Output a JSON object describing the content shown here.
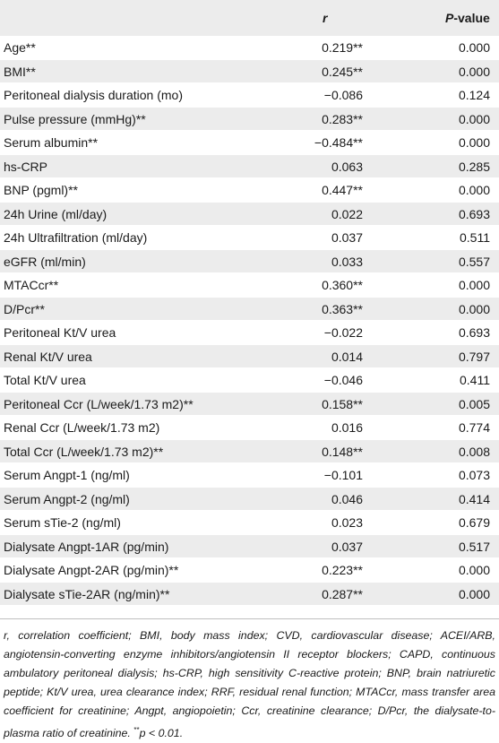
{
  "header": {
    "col_r": "r",
    "col_p_prefix": "P",
    "col_p_suffix": "-value"
  },
  "rows": [
    {
      "variable": "Age**",
      "r": "0.219**",
      "p": "0.000"
    },
    {
      "variable": "BMI**",
      "r": "0.245**",
      "p": "0.000"
    },
    {
      "variable": "Peritoneal dialysis duration (mo)",
      "r": "−0.086",
      "p": "0.124"
    },
    {
      "variable": "Pulse pressure (mmHg)**",
      "r": "0.283**",
      "p": "0.000"
    },
    {
      "variable": "Serum albumin**",
      "r": "−0.484**",
      "p": "0.000"
    },
    {
      "variable": "hs-CRP",
      "r": "0.063",
      "p": "0.285"
    },
    {
      "variable": "BNP (pgml)**",
      "r": "0.447**",
      "p": "0.000"
    },
    {
      "variable": "24h Urine (ml/day)",
      "r": "0.022",
      "p": "0.693"
    },
    {
      "variable": "24h Ultrafiltration (ml/day)",
      "r": "0.037",
      "p": "0.511"
    },
    {
      "variable": "eGFR (ml/min)",
      "r": "0.033",
      "p": "0.557"
    },
    {
      "variable": "MTACcr**",
      "r": "0.360**",
      "p": "0.000"
    },
    {
      "variable": "D/Pcr**",
      "r": "0.363**",
      "p": "0.000"
    },
    {
      "variable": "Peritoneal Kt/V urea",
      "r": "−0.022",
      "p": "0.693"
    },
    {
      "variable": "Renal Kt/V urea",
      "r": "0.014",
      "p": "0.797"
    },
    {
      "variable": "Total Kt/V urea",
      "r": "−0.046",
      "p": "0.411"
    },
    {
      "variable": "Peritoneal Ccr (L/week/1.73 m2)**",
      "r": "0.158**",
      "p": "0.005"
    },
    {
      "variable": "Renal Ccr (L/week/1.73 m2)",
      "r": "0.016",
      "p": "0.774"
    },
    {
      "variable": "Total Ccr (L/week/1.73 m2)**",
      "r": "0.148**",
      "p": "0.008"
    },
    {
      "variable": "Serum Angpt-1 (ng/ml)",
      "r": "−0.101",
      "p": "0.073"
    },
    {
      "variable": "Serum Angpt-2 (ng/ml)",
      "r": "0.046",
      "p": "0.414"
    },
    {
      "variable": "Serum sTie-2 (ng/ml)",
      "r": "0.023",
      "p": "0.679"
    },
    {
      "variable": "Dialysate Angpt-1AR (pg/min)",
      "r": "0.037",
      "p": "0.517"
    },
    {
      "variable": "Dialysate Angpt-2AR (pg/min)**",
      "r": "0.223**",
      "p": "0.000"
    },
    {
      "variable": "Dialysate sTie-2AR (ng/min)**",
      "r": "0.287**",
      "p": "0.000"
    }
  ],
  "footnote": {
    "text": "r, correlation coefficient; BMI, body mass index; CVD, cardiovascular disease; ACEI/ARB, angiotensin-converting enzyme inhibitors/angiotensin II receptor blockers; CAPD, continuous ambulatory peritoneal dialysis; hs-CRP, high sensitivity C-reactive protein; BNP, brain natriuretic peptide; Kt/V urea, urea clearance index; RRF, residual renal function; MTACcr, mass transfer area coefficient for creatinine; Angpt, angiopoietin; Ccr, creatinine clearance; D/Pcr, the dialysate-to-plasma ratio of creatinine. ",
    "sup": "**",
    "tail": "p < 0.01."
  }
}
